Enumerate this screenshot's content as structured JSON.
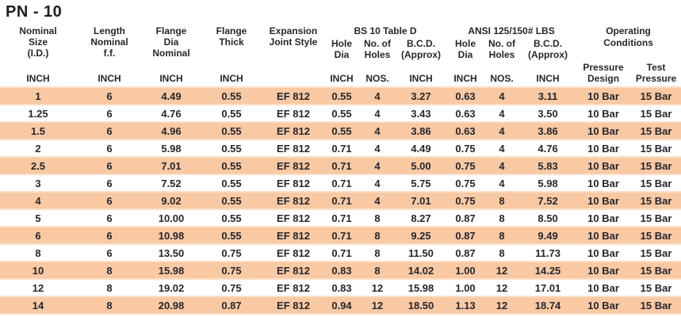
{
  "page": {
    "title": "PN - 10"
  },
  "colors": {
    "stripe": "#f8c9a3",
    "stripe_edge": "#fcdfc8",
    "text": "#26262e",
    "background": "#ffffff"
  },
  "table": {
    "simple_columns": [
      {
        "label": "Nominal\nSize\n(I.D.)",
        "unit": "INCH"
      },
      {
        "label": "Length\nNominal\nf.f.",
        "unit": "INCH"
      },
      {
        "label": "Flange\nDia\nNominal",
        "unit": "INCH"
      },
      {
        "label": "Flange\nThick",
        "unit": "INCH"
      },
      {
        "label": "Expansion\nJoint Style",
        "unit": ""
      }
    ],
    "groups": [
      {
        "label": "BS 10 Table D",
        "columns": [
          {
            "label": "Hole\nDia",
            "unit": "INCH"
          },
          {
            "label": "No. of\nHoles",
            "unit": "NOS."
          },
          {
            "label": "B.C.D.\n(Approx)",
            "unit": "INCH"
          }
        ]
      },
      {
        "label": "ANSI 125/150# LBS",
        "columns": [
          {
            "label": "Hole\nDia",
            "unit": "INCH"
          },
          {
            "label": "No. of\nHoles",
            "unit": "NOS."
          },
          {
            "label": "B.C.D.\n(Approx)",
            "unit": "INCH"
          }
        ]
      },
      {
        "label": "Operating\nConditions",
        "columns": [
          {
            "label": "Pressure\nDesign",
            "unit": ""
          },
          {
            "label": "Test\nPressure",
            "unit": ""
          }
        ]
      }
    ],
    "rows": [
      [
        "1",
        "6",
        "4.49",
        "0.55",
        "EF 812",
        "0.55",
        "4",
        "3.27",
        "0.63",
        "4",
        "3.11",
        "10 Bar",
        "15 Bar"
      ],
      [
        "1.25",
        "6",
        "4.76",
        "0.55",
        "EF 812",
        "0.55",
        "4",
        "3.43",
        "0.63",
        "4",
        "3.50",
        "10 Bar",
        "15 Bar"
      ],
      [
        "1.5",
        "6",
        "4.96",
        "0.55",
        "EF 812",
        "0.55",
        "4",
        "3.86",
        "0.63",
        "4",
        "3.86",
        "10 Bar",
        "15 Bar"
      ],
      [
        "2",
        "6",
        "5.98",
        "0.55",
        "EF 812",
        "0.71",
        "4",
        "4.49",
        "0.75",
        "4",
        "4.76",
        "10 Bar",
        "15 Bar"
      ],
      [
        "2.5",
        "6",
        "7.01",
        "0.55",
        "EF 812",
        "0.71",
        "4",
        "5.00",
        "0.75",
        "4",
        "5.83",
        "10 Bar",
        "15 Bar"
      ],
      [
        "3",
        "6",
        "7.52",
        "0.55",
        "EF 812",
        "0.71",
        "4",
        "5.75",
        "0.75",
        "4",
        "5.98",
        "10 Bar",
        "15 Bar"
      ],
      [
        "4",
        "6",
        "9.02",
        "0.55",
        "EF 812",
        "0.71",
        "4",
        "7.01",
        "0.75",
        "8",
        "7.52",
        "10 Bar",
        "15 Bar"
      ],
      [
        "5",
        "6",
        "10.00",
        "0.55",
        "EF 812",
        "0.71",
        "8",
        "8.27",
        "0.87",
        "8",
        "8.50",
        "10 Bar",
        "15 Bar"
      ],
      [
        "6",
        "6",
        "10.98",
        "0.55",
        "EF 812",
        "0.71",
        "8",
        "9.25",
        "0.87",
        "8",
        "9.49",
        "10 Bar",
        "15 Bar"
      ],
      [
        "8",
        "6",
        "13.50",
        "0.75",
        "EF 812",
        "0.71",
        "8",
        "11.50",
        "0.87",
        "8",
        "11.73",
        "10 Bar",
        "15 Bar"
      ],
      [
        "10",
        "8",
        "15.98",
        "0.75",
        "EF 812",
        "0.83",
        "8",
        "14.02",
        "1.00",
        "12",
        "14.25",
        "10 Bar",
        "15 Bar"
      ],
      [
        "12",
        "8",
        "19.02",
        "0.75",
        "EF 812",
        "0.83",
        "12",
        "15.98",
        "1.00",
        "12",
        "17.01",
        "10 Bar",
        "15 Bar"
      ],
      [
        "14",
        "8",
        "20.98",
        "0.87",
        "EF 812",
        "0.94",
        "12",
        "18.50",
        "1.13",
        "12",
        "18.74",
        "10 Bar",
        "15 Bar"
      ]
    ]
  }
}
